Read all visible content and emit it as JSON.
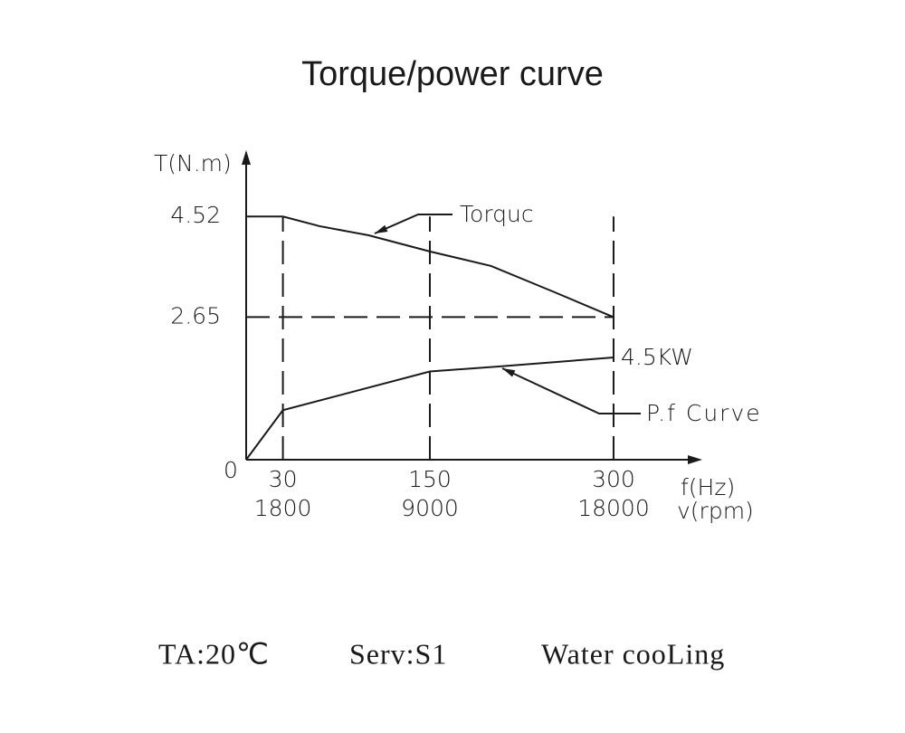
{
  "chart_data": {
    "type": "line",
    "title": "Torque/power curve",
    "y_label": "T(N.m)",
    "x_label": "f(Hz)",
    "x2_label": "v(rpm)",
    "xlim": [
      0,
      368
    ],
    "ylim": [
      0,
      5.6
    ],
    "xticks": [
      30,
      150,
      300
    ],
    "x2_ticklabels": [
      1800,
      9000,
      18000
    ],
    "yticks": [
      0,
      2.65,
      4.52
    ],
    "series": [
      {
        "name": "Torquc",
        "color": "#1a1a1a",
        "x": [
          30,
          60,
          100,
          150,
          200,
          250,
          300
        ],
        "values": [
          4.52,
          4.34,
          4.17,
          3.87,
          3.6,
          3.13,
          2.65
        ]
      },
      {
        "name": "P.f Curve",
        "color": "#1a1a1a",
        "x": [
          0,
          30,
          150,
          205,
          300
        ],
        "values": [
          0,
          0.92,
          1.64,
          1.73,
          1.9
        ]
      }
    ],
    "annotations": [
      "4.5KW"
    ],
    "footer": [
      "TA:20℃",
      "Serv:S1",
      "Water cooLing"
    ]
  }
}
